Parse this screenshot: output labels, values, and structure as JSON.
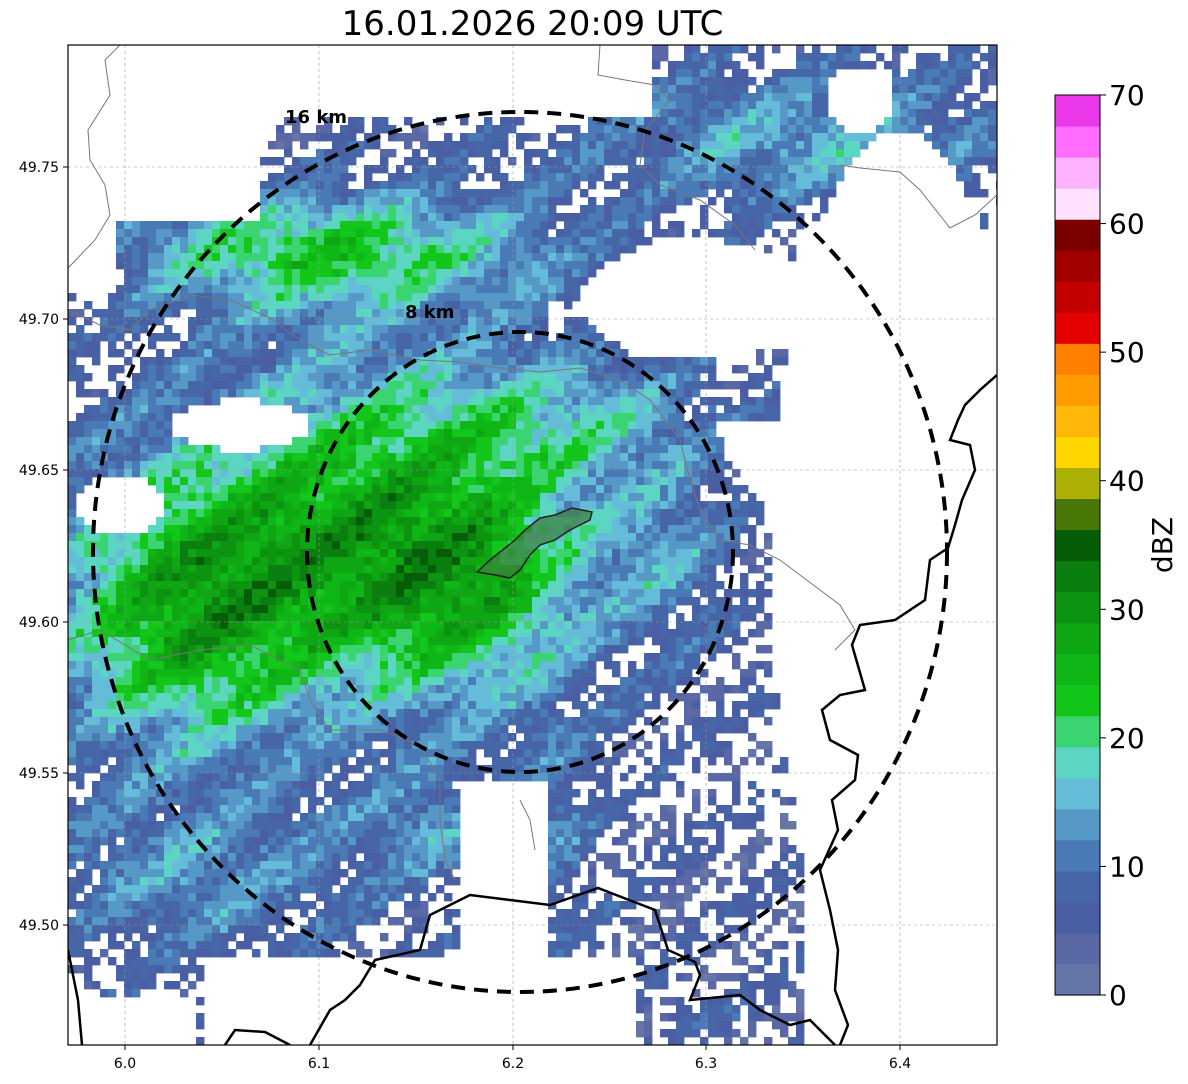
{
  "title": "16.01.2026 20:09 UTC",
  "map": {
    "lon_range": [
      5.97,
      6.45
    ],
    "lat_range": [
      49.46,
      49.79
    ],
    "x_ticks": [
      "6.0",
      "6.1",
      "6.2",
      "6.3",
      "6.4"
    ],
    "y_ticks": [
      "49.50",
      "49.55",
      "49.60",
      "49.65",
      "49.70",
      "49.75"
    ],
    "grid": true,
    "ring_labels": [
      "16 km",
      "8 km"
    ],
    "center_lon": 6.205,
    "center_lat": 49.623
  },
  "colorbar": {
    "label": "dBZ",
    "ticks": [
      "0",
      "10",
      "20",
      "30",
      "40",
      "50",
      "60",
      "70"
    ],
    "range": [
      0,
      70
    ],
    "colors": [
      "#6575a8",
      "#5a68a5",
      "#4a5ea4",
      "#4666a8",
      "#4a7ab5",
      "#5698c6",
      "#64bcd8",
      "#5cd6c2",
      "#3ad570",
      "#12c61a",
      "#0eb716",
      "#0ea612",
      "#0c9410",
      "#0a7e0e",
      "#055e07",
      "#4a7808",
      "#adb106",
      "#ffd600",
      "#ffb80a",
      "#ff9c00",
      "#ff8000",
      "#e40000",
      "#c40000",
      "#a20000",
      "#7a0000",
      "#ffe2ff",
      "#ffb2ff",
      "#ff6cff",
      "#ea38ea"
    ]
  }
}
